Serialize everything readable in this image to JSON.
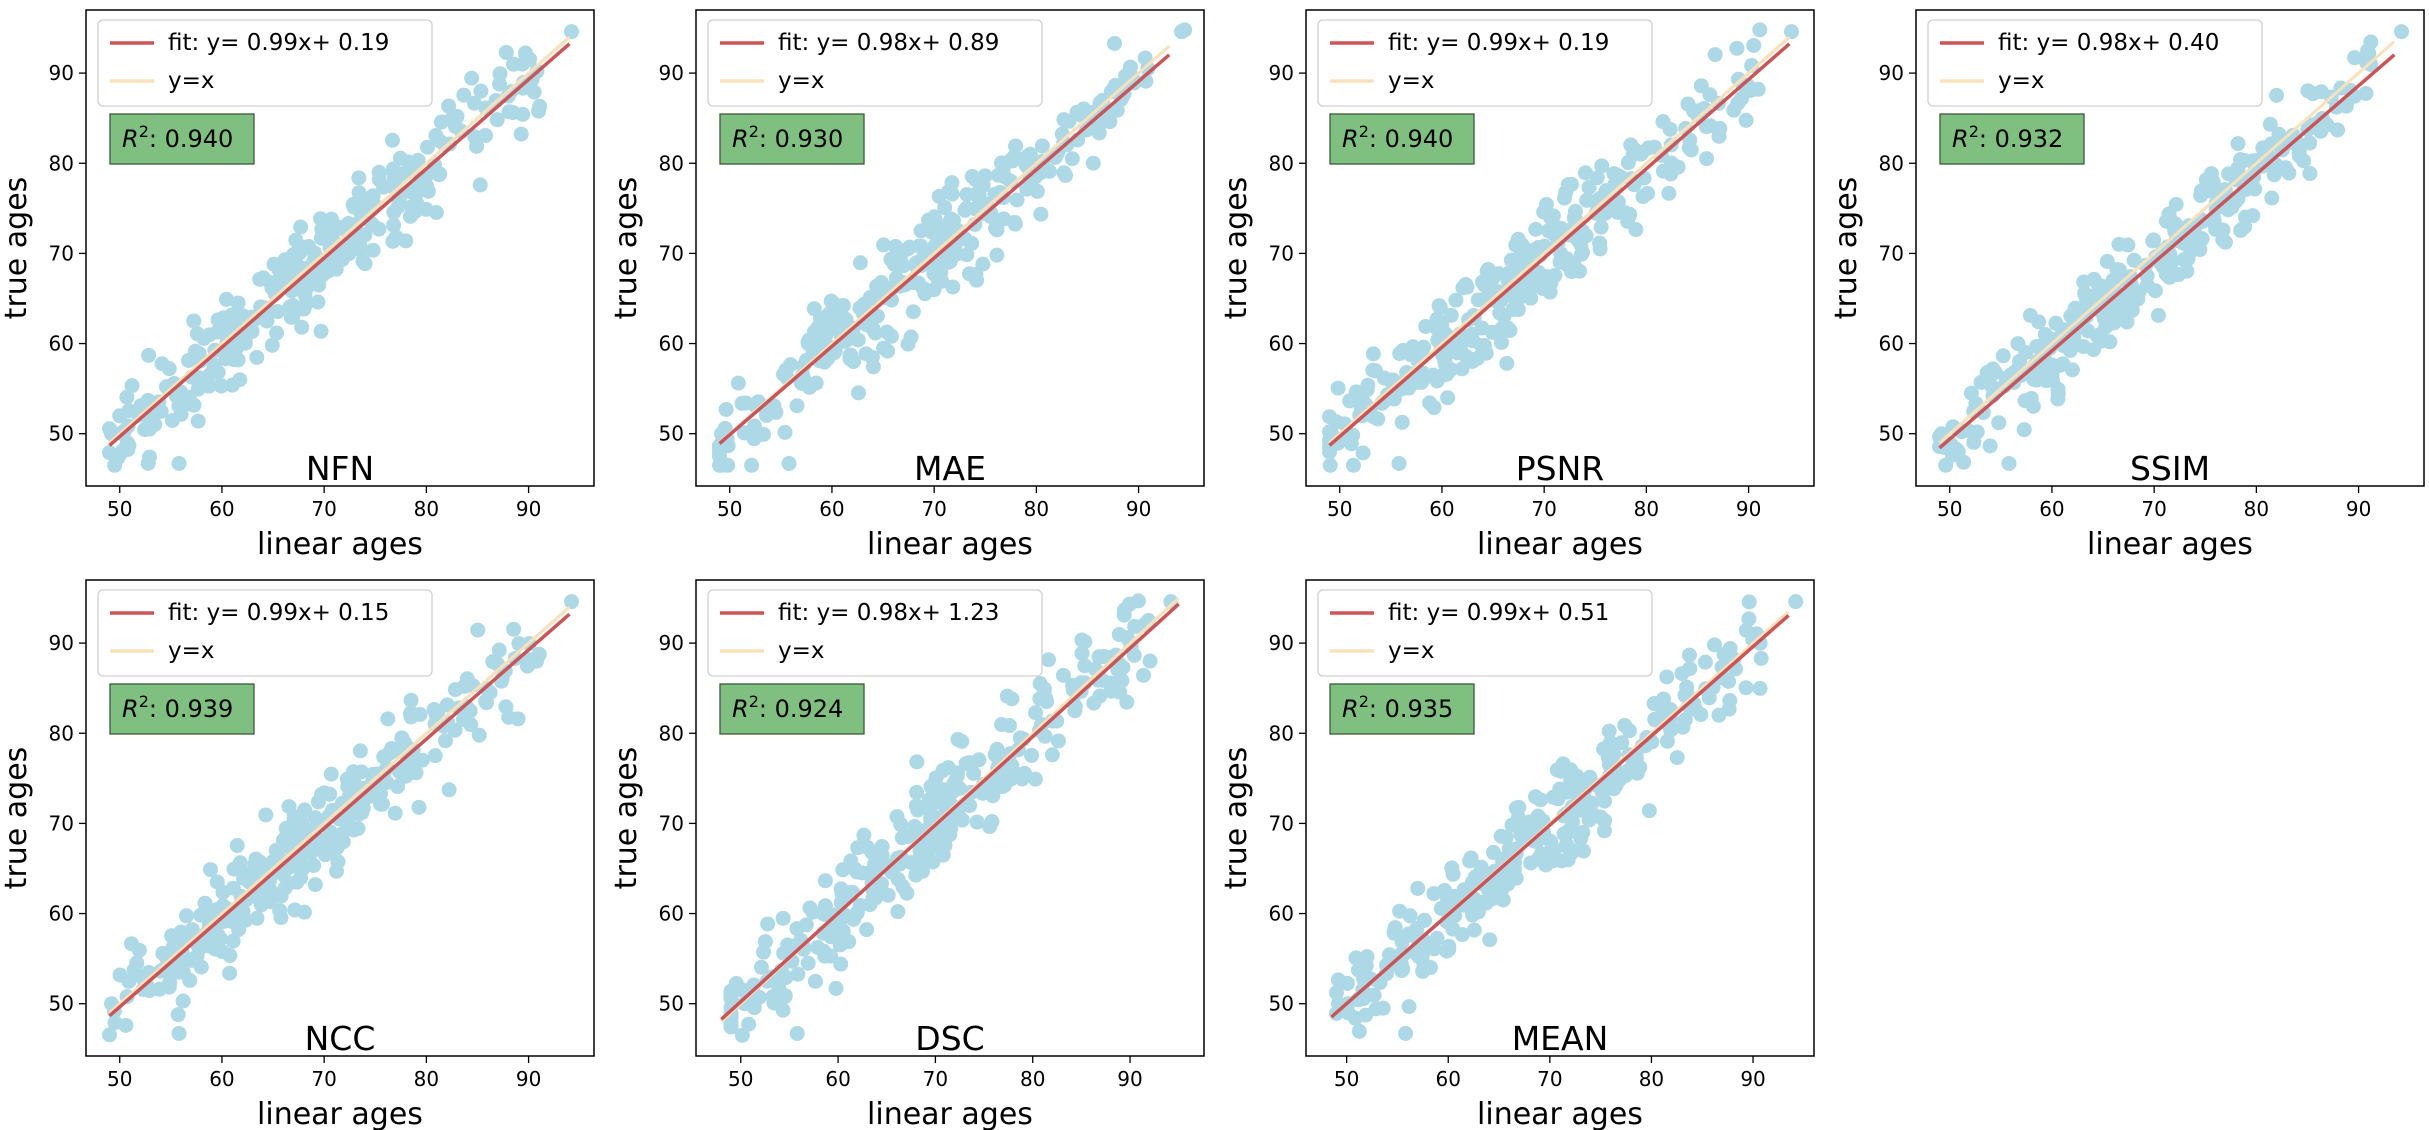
{
  "figure": {
    "columns": 4,
    "rows": 2
  },
  "colors": {
    "points": "#add8e6",
    "fit_line": "#cd5456",
    "identity_line": "#f9e2b9",
    "r2_box": "#7fbf7f",
    "axis": "#000000"
  },
  "chart_data": [
    {
      "type": "scatter",
      "name": "NFN",
      "xlabel": "linear ages",
      "ylabel": "true ages",
      "xlim": [
        46.7,
        96.4
      ],
      "ylim": [
        44.2,
        97.0
      ],
      "xticks": [
        50,
        60,
        70,
        80,
        90
      ],
      "yticks": [
        50,
        60,
        70,
        80,
        90
      ],
      "fit": {
        "slope": 0.99,
        "intercept": 0.19,
        "x_range": [
          49,
          94
        ]
      },
      "identity": {
        "x_range": [
          49,
          94
        ]
      },
      "legend": [
        "fit: y= 0.99x+ 0.19",
        "y=x"
      ],
      "r2_label": "R",
      "r2_value": ": 0.940",
      "seed": 11
    },
    {
      "type": "scatter",
      "name": "MAE",
      "xlabel": "linear ages",
      "ylabel": "true ages",
      "xlim": [
        46.7,
        96.4
      ],
      "ylim": [
        44.2,
        97.0
      ],
      "xticks": [
        50,
        60,
        70,
        80,
        90
      ],
      "yticks": [
        50,
        60,
        70,
        80,
        90
      ],
      "fit": {
        "slope": 0.98,
        "intercept": 0.89,
        "x_range": [
          49,
          93
        ]
      },
      "identity": {
        "x_range": [
          49,
          93
        ]
      },
      "legend": [
        "fit: y= 0.98x+ 0.89",
        "y=x"
      ],
      "r2_label": "R",
      "r2_value": ": 0.930",
      "seed": 23
    },
    {
      "type": "scatter",
      "name": "PSNR",
      "xlabel": "linear ages",
      "ylabel": "true ages",
      "xlim": [
        46.7,
        96.4
      ],
      "ylim": [
        44.2,
        97.0
      ],
      "xticks": [
        50,
        60,
        70,
        80,
        90
      ],
      "yticks": [
        50,
        60,
        70,
        80,
        90
      ],
      "fit": {
        "slope": 0.99,
        "intercept": 0.19,
        "x_range": [
          49,
          94
        ]
      },
      "identity": {
        "x_range": [
          49,
          94
        ]
      },
      "legend": [
        "fit: y= 0.99x+ 0.19",
        "y=x"
      ],
      "r2_label": "R",
      "r2_value": ": 0.940",
      "seed": 37
    },
    {
      "type": "scatter",
      "name": "SSIM",
      "xlabel": "linear ages",
      "ylabel": "true ages",
      "xlim": [
        46.7,
        96.4
      ],
      "ylim": [
        44.2,
        97.0
      ],
      "xticks": [
        50,
        60,
        70,
        80,
        90
      ],
      "yticks": [
        50,
        60,
        70,
        80,
        90
      ],
      "fit": {
        "slope": 0.98,
        "intercept": 0.4,
        "x_range": [
          49,
          93.5
        ]
      },
      "identity": {
        "x_range": [
          49,
          93.5
        ]
      },
      "legend": [
        "fit: y= 0.98x+ 0.40",
        "y=x"
      ],
      "r2_label": "R",
      "r2_value": ": 0.932",
      "seed": 41
    },
    {
      "type": "scatter",
      "name": "NCC",
      "xlabel": "linear ages",
      "ylabel": "true ages",
      "xlim": [
        46.7,
        96.4
      ],
      "ylim": [
        44.2,
        97.0
      ],
      "xticks": [
        50,
        60,
        70,
        80,
        90
      ],
      "yticks": [
        50,
        60,
        70,
        80,
        90
      ],
      "fit": {
        "slope": 0.99,
        "intercept": 0.15,
        "x_range": [
          49,
          94
        ]
      },
      "identity": {
        "x_range": [
          49,
          94
        ]
      },
      "legend": [
        "fit: y= 0.99x+ 0.15",
        "y=x"
      ],
      "r2_label": "R",
      "r2_value": ": 0.939",
      "seed": 53
    },
    {
      "type": "scatter",
      "name": "DSC",
      "xlabel": "linear ages",
      "ylabel": "true ages",
      "xlim": [
        45.4,
        97.6
      ],
      "ylim": [
        44.2,
        97.0
      ],
      "xticks": [
        50,
        60,
        70,
        80,
        90
      ],
      "yticks": [
        50,
        60,
        70,
        80,
        90
      ],
      "fit": {
        "slope": 0.98,
        "intercept": 1.23,
        "x_range": [
          48,
          95
        ]
      },
      "identity": {
        "x_range": [
          48,
          95
        ]
      },
      "legend": [
        "fit: y= 0.98x+ 1.23",
        "y=x"
      ],
      "r2_label": "R",
      "r2_value": ": 0.924",
      "seed": 67
    },
    {
      "type": "scatter",
      "name": "MEAN",
      "xlabel": "linear ages",
      "ylabel": "true ages",
      "xlim": [
        46.0,
        96.0
      ],
      "ylim": [
        44.2,
        97.0
      ],
      "xticks": [
        50,
        60,
        70,
        80,
        90
      ],
      "yticks": [
        50,
        60,
        70,
        80,
        90
      ],
      "fit": {
        "slope": 0.99,
        "intercept": 0.51,
        "x_range": [
          48.5,
          93.5
        ]
      },
      "identity": {
        "x_range": [
          48.5,
          93.5
        ]
      },
      "legend": [
        "fit: y= 0.99x+ 0.51",
        "y=x"
      ],
      "r2_label": "R",
      "r2_value": ": 0.935",
      "seed": 79
    }
  ]
}
